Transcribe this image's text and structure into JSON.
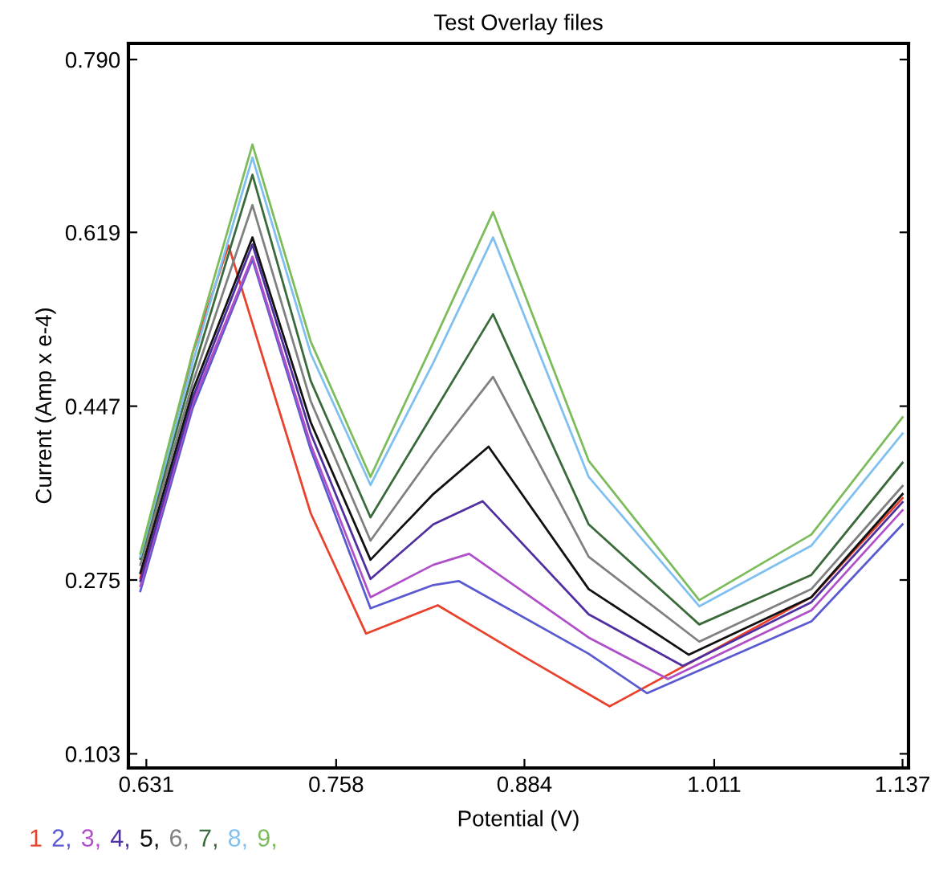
{
  "chart_data": {
    "type": "line",
    "title": "Test Overlay files",
    "xlabel": "Potential (V)",
    "ylabel": "Current (Amp x e-4)",
    "xlim": [
      0.619,
      1.141
    ],
    "ylim": [
      0.089,
      0.806
    ],
    "xticks": [
      0.631,
      0.758,
      0.884,
      1.011,
      1.137
    ],
    "yticks": [
      0.103,
      0.275,
      0.447,
      0.619,
      {
        "value": 0.79,
        "label": "0.790"
      }
    ],
    "grid": false,
    "legend": "bottom left",
    "marker": "none",
    "line_style": "solid",
    "series": [
      {
        "name": "1",
        "color": "#e8412c",
        "x": [
          0.627,
          0.662,
          0.686,
          0.741,
          0.778,
          0.826,
          0.885,
          0.941,
          1.076,
          1.137
        ],
        "values": [
          0.277,
          0.5,
          0.606,
          0.341,
          0.222,
          0.25,
          0.198,
          0.15,
          0.258,
          0.356
        ]
      },
      {
        "name": "2,",
        "color": "#5a5ad0",
        "x": [
          0.627,
          0.662,
          0.702,
          0.741,
          0.781,
          0.823,
          0.84,
          0.927,
          0.966,
          1.076,
          1.137
        ],
        "values": [
          0.264,
          0.445,
          0.592,
          0.404,
          0.247,
          0.27,
          0.274,
          0.202,
          0.163,
          0.234,
          0.33
        ]
      },
      {
        "name": "3,",
        "color": "#b050c8",
        "x": [
          0.627,
          0.662,
          0.702,
          0.741,
          0.781,
          0.823,
          0.847,
          0.927,
          0.98,
          1.076,
          1.137
        ],
        "values": [
          0.269,
          0.45,
          0.595,
          0.409,
          0.258,
          0.29,
          0.301,
          0.218,
          0.177,
          0.245,
          0.344
        ]
      },
      {
        "name": "4,",
        "color": "#5030a0",
        "x": [
          0.627,
          0.662,
          0.702,
          0.741,
          0.781,
          0.823,
          0.856,
          0.927,
          0.99,
          1.076,
          1.137
        ],
        "values": [
          0.274,
          0.455,
          0.607,
          0.42,
          0.276,
          0.33,
          0.353,
          0.241,
          0.19,
          0.253,
          0.352
        ]
      },
      {
        "name": "5,",
        "color": "#111111",
        "x": [
          0.627,
          0.662,
          0.702,
          0.741,
          0.781,
          0.823,
          0.86,
          0.927,
          0.994,
          1.076,
          1.137
        ],
        "values": [
          0.282,
          0.462,
          0.614,
          0.431,
          0.295,
          0.36,
          0.407,
          0.266,
          0.201,
          0.258,
          0.36
        ]
      },
      {
        "name": "6,",
        "color": "#808080",
        "x": [
          0.627,
          0.662,
          0.702,
          0.741,
          0.781,
          0.823,
          0.863,
          0.927,
          1.001,
          1.076,
          1.137
        ],
        "values": [
          0.29,
          0.47,
          0.646,
          0.452,
          0.314,
          0.4,
          0.476,
          0.298,
          0.214,
          0.266,
          0.368
        ]
      },
      {
        "name": "7,",
        "color": "#3a6a3a",
        "x": [
          0.627,
          0.662,
          0.702,
          0.741,
          0.781,
          0.823,
          0.863,
          0.927,
          1.001,
          1.076,
          1.137
        ],
        "values": [
          0.296,
          0.48,
          0.676,
          0.472,
          0.337,
          0.44,
          0.538,
          0.33,
          0.231,
          0.28,
          0.391
        ]
      },
      {
        "name": "8,",
        "color": "#80c0f0",
        "x": [
          0.627,
          0.662,
          0.702,
          0.741,
          0.781,
          0.823,
          0.863,
          0.927,
          1.001,
          1.076,
          1.137
        ],
        "values": [
          0.298,
          0.49,
          0.693,
          0.499,
          0.369,
          0.49,
          0.614,
          0.377,
          0.249,
          0.309,
          0.42
        ]
      },
      {
        "name": "9,",
        "color": "#7cbc5a",
        "x": [
          0.627,
          0.662,
          0.702,
          0.741,
          0.781,
          0.823,
          0.863,
          0.927,
          1.001,
          1.076,
          1.137
        ],
        "values": [
          0.301,
          0.5,
          0.706,
          0.511,
          0.377,
          0.51,
          0.639,
          0.393,
          0.255,
          0.32,
          0.436
        ]
      }
    ]
  }
}
